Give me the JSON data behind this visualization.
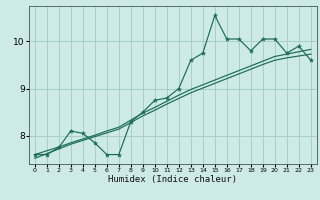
{
  "xlabel": "Humidex (Indice chaleur)",
  "background_color": "#ceeae6",
  "grid_color": "#a8cfc9",
  "line_color": "#1a6b5a",
  "x_values": [
    0,
    1,
    2,
    3,
    4,
    5,
    6,
    7,
    8,
    9,
    10,
    11,
    12,
    13,
    14,
    15,
    16,
    17,
    18,
    19,
    20,
    21,
    22,
    23
  ],
  "y_main": [
    7.6,
    7.6,
    7.75,
    8.1,
    8.05,
    7.85,
    7.6,
    7.6,
    8.3,
    8.5,
    8.75,
    8.8,
    9.0,
    9.6,
    9.75,
    10.55,
    10.05,
    10.05,
    9.8,
    10.05,
    10.05,
    9.75,
    9.9,
    9.6
  ],
  "y_trend1": [
    7.6,
    7.68,
    7.76,
    7.85,
    7.93,
    8.01,
    8.1,
    8.18,
    8.33,
    8.48,
    8.6,
    8.73,
    8.86,
    8.98,
    9.08,
    9.18,
    9.28,
    9.38,
    9.48,
    9.58,
    9.68,
    9.73,
    9.78,
    9.83
  ],
  "y_trend2": [
    7.52,
    7.62,
    7.72,
    7.82,
    7.9,
    7.98,
    8.06,
    8.14,
    8.28,
    8.42,
    8.54,
    8.67,
    8.79,
    8.91,
    9.01,
    9.11,
    9.21,
    9.31,
    9.41,
    9.51,
    9.6,
    9.65,
    9.69,
    9.73
  ],
  "xlim": [
    -0.5,
    23.5
  ],
  "ylim": [
    7.4,
    10.75
  ],
  "yticks": [
    8,
    9,
    10
  ],
  "xticks": [
    0,
    1,
    2,
    3,
    4,
    5,
    6,
    7,
    8,
    9,
    10,
    11,
    12,
    13,
    14,
    15,
    16,
    17,
    18,
    19,
    20,
    21,
    22,
    23
  ]
}
